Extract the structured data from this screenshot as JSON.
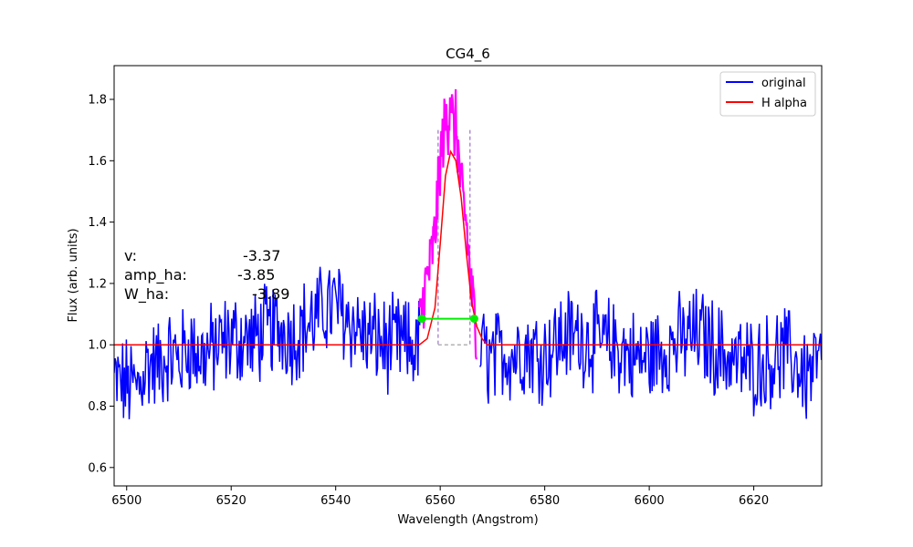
{
  "chart_data": {
    "type": "line",
    "title": "CG4_6",
    "xlabel": "Wavelength (Angstrom)",
    "ylabel": "Flux (arb. units)",
    "xlim": [
      6497.6,
      6633.0
    ],
    "ylim": [
      0.54,
      1.91
    ],
    "xticks": [
      6500,
      6520,
      6540,
      6560,
      6580,
      6600,
      6620
    ],
    "yticks": [
      0.6,
      0.8,
      1.0,
      1.2,
      1.4,
      1.6,
      1.8
    ],
    "xtick_labels": [
      "6500",
      "6520",
      "6540",
      "6560",
      "6580",
      "6600",
      "6620"
    ],
    "ytick_labels": [
      "0.6",
      "0.8",
      "1.0",
      "1.2",
      "1.4",
      "1.6",
      "1.8"
    ],
    "grid": false,
    "legend_position": "top-right",
    "legend": [
      {
        "label": "original",
        "color": "#0000ff"
      },
      {
        "label": "H alpha",
        "color": "#ff0000"
      }
    ],
    "series": [
      {
        "name": "original",
        "color": "#0000ff",
        "x": [
          6497.6,
          6500,
          6502,
          6504,
          6506,
          6508,
          6510,
          6512,
          6514,
          6516,
          6518,
          6520,
          6522,
          6524,
          6526,
          6528,
          6530,
          6532,
          6534,
          6536,
          6538,
          6540,
          6542,
          6544,
          6546,
          6548,
          6550,
          6552,
          6554,
          6556,
          6568,
          6570,
          6572,
          6574,
          6576,
          6578,
          6580,
          6582,
          6584,
          6586,
          6588,
          6590,
          6592,
          6594,
          6596,
          6598,
          6600,
          6602,
          6604,
          6606,
          6608,
          6610,
          6612,
          6614,
          6616,
          6618,
          6620,
          6622,
          6624,
          6626,
          6628,
          6630,
          6633
        ],
        "y": [
          0.88,
          0.87,
          0.86,
          0.94,
          0.93,
          0.97,
          0.95,
          1.0,
          0.96,
          0.98,
          1.0,
          1.02,
          1.02,
          1.01,
          1.04,
          1.05,
          1.05,
          1.03,
          1.06,
          1.08,
          1.12,
          1.13,
          1.09,
          1.06,
          1.02,
          1.02,
          0.99,
          1.01,
          0.99,
          1.0,
          0.98,
          0.94,
          0.98,
          0.97,
          0.99,
          0.98,
          0.97,
          1.0,
          1.03,
          1.03,
          1.02,
          1.01,
          1.0,
          0.99,
          0.97,
          0.95,
          0.96,
          0.98,
          1.0,
          1.01,
          1.03,
          1.03,
          1.0,
          0.97,
          0.95,
          0.94,
          0.93,
          0.94,
          0.96,
          0.97,
          0.94,
          0.9,
          0.95
        ]
      },
      {
        "name": "H alpha",
        "color": "#ff0000",
        "x": [
          6497.6,
          6554,
          6556,
          6557.5,
          6559,
          6560,
          6561,
          6562,
          6563,
          6564,
          6565,
          6566,
          6567,
          6568,
          6569,
          6570,
          6633
        ],
        "y": [
          1.0,
          1.0,
          1.0,
          1.02,
          1.12,
          1.33,
          1.55,
          1.63,
          1.6,
          1.48,
          1.3,
          1.14,
          1.06,
          1.02,
          1.0,
          1.0,
          1.0
        ]
      },
      {
        "name": "",
        "color": "#ff00ff",
        "x": [
          6556,
          6557,
          6558,
          6559,
          6560,
          6561,
          6561.5,
          6562,
          6562.5,
          6563,
          6564,
          6565,
          6566,
          6567
        ],
        "y": [
          1.05,
          1.18,
          1.25,
          1.36,
          1.6,
          1.73,
          1.72,
          1.85,
          1.68,
          1.73,
          1.5,
          1.4,
          1.16,
          1.05
        ]
      }
    ],
    "fwhm_marker": {
      "x": [
        6556.5,
        6566.5
      ],
      "y": [
        1.085,
        1.085
      ],
      "color": "#00ee00"
    },
    "window_lines": {
      "x": [
        6559.6,
        6565.7
      ],
      "y_bottom": 1.0,
      "y_top": 1.7,
      "color": "#9b72c8"
    },
    "annotations": [
      {
        "label": "v:",
        "value": "-3.37"
      },
      {
        "label": "amp_ha:",
        "value": "-3.85"
      },
      {
        "label": "W_ha:",
        "value": "-3.89"
      }
    ]
  }
}
